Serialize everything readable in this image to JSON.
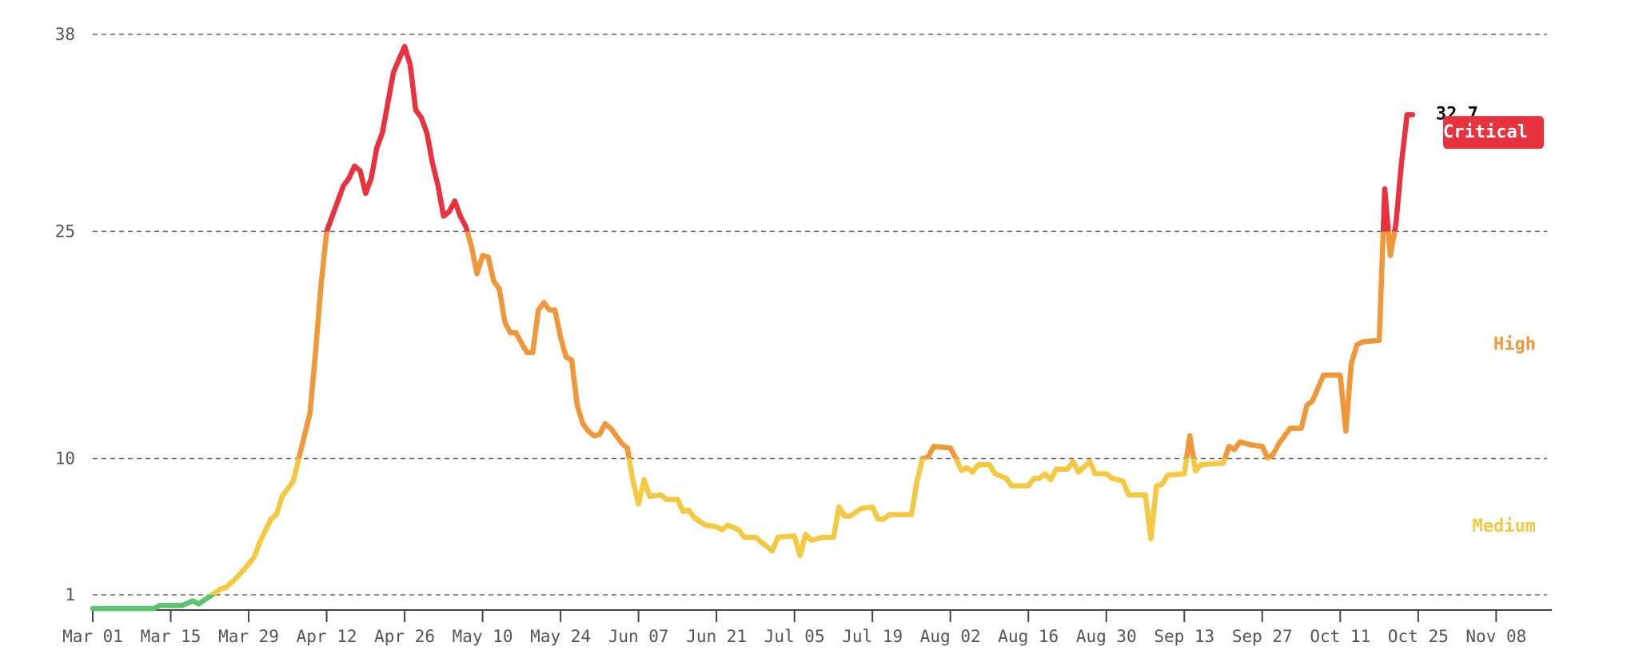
{
  "chart_data": {
    "type": "line",
    "x": [
      "Mar 01",
      "Mar 12",
      "Mar 13",
      "Mar 17",
      "Mar 19",
      "Mar 20",
      "Mar 22",
      "Mar 24",
      "Mar 25",
      "Mar 27",
      "Mar 28",
      "Mar 30",
      "Mar 31",
      "Apr 02",
      "Apr 03",
      "Apr 04",
      "Apr 06",
      "Apr 07",
      "Apr 09",
      "Apr 10",
      "Apr 11",
      "Apr 12",
      "Apr 14",
      "Apr 15",
      "Apr 16",
      "Apr 17",
      "Apr 18",
      "Apr 19",
      "Apr 20",
      "Apr 21",
      "Apr 22",
      "Apr 23",
      "Apr 24",
      "Apr 26",
      "Apr 27",
      "Apr 28",
      "Apr 29",
      "Apr 30",
      "May 01",
      "May 02",
      "May 03",
      "May 04",
      "May 05",
      "May 06",
      "May 07",
      "May 08",
      "May 09",
      "May 10",
      "May 11",
      "May 12",
      "May 13",
      "May 14",
      "May 15",
      "May 16",
      "May 17",
      "May 18",
      "May 19",
      "May 20",
      "May 21",
      "May 22",
      "May 23",
      "May 24",
      "May 25",
      "May 26",
      "May 27",
      "May 28",
      "May 29",
      "May 30",
      "May 31",
      "Jun 01",
      "Jun 02",
      "Jun 03",
      "Jun 04",
      "Jun 05",
      "Jun 06",
      "Jun 07",
      "Jun 08",
      "Jun 09",
      "Jun 11",
      "Jun 12",
      "Jun 14",
      "Jun 15",
      "Jun 16",
      "Jun 17",
      "Jun 19",
      "Jun 21",
      "Jun 22",
      "Jun 23",
      "Jun 25",
      "Jun 26",
      "Jun 28",
      "Jun 29",
      "Jul 01",
      "Jul 02",
      "Jul 05",
      "Jul 06",
      "Jul 07",
      "Jul 08",
      "Jul 10",
      "Jul 12",
      "Jul 13",
      "Jul 14",
      "Jul 15",
      "Jul 17",
      "Jul 19",
      "Jul 20",
      "Jul 21",
      "Jul 22",
      "Jul 26",
      "Jul 27",
      "Jul 28",
      "Jul 29",
      "Jul 30",
      "Aug 02",
      "Aug 03",
      "Aug 04",
      "Aug 05",
      "Aug 06",
      "Aug 07",
      "Aug 09",
      "Aug 10",
      "Aug 12",
      "Aug 13",
      "Aug 16",
      "Aug 17",
      "Aug 18",
      "Aug 19",
      "Aug 20",
      "Aug 21",
      "Aug 23",
      "Aug 24",
      "Aug 25",
      "Aug 27",
      "Aug 28",
      "Aug 30",
      "Aug 31",
      "Sep 02",
      "Sep 03",
      "Sep 06",
      "Sep 07",
      "Sep 08",
      "Sep 09",
      "Sep 10",
      "Sep 13",
      "Sep 14",
      "Sep 15",
      "Sep 16",
      "Sep 20",
      "Sep 21",
      "Sep 22",
      "Sep 23",
      "Sep 25",
      "Sep 27",
      "Sep 28",
      "Sep 29",
      "Sep 30",
      "Oct 01",
      "Oct 02",
      "Oct 04",
      "Oct 05",
      "Oct 06",
      "Oct 08",
      "Oct 11",
      "Oct 12",
      "Oct 13",
      "Oct 14",
      "Oct 15",
      "Oct 18",
      "Oct 19",
      "Oct 20",
      "Oct 21",
      "Oct 22",
      "Oct 23",
      "Oct 24"
    ],
    "values": [
      0.1,
      0.1,
      0.3,
      0.3,
      0.6,
      0.4,
      0.9,
      1.4,
      1.5,
      2.2,
      2.6,
      3.5,
      4.5,
      6,
      6.3,
      7.5,
      8.5,
      10,
      13,
      17,
      21.5,
      25,
      27,
      28,
      28.5,
      29.3,
      29,
      27.5,
      28.5,
      30.5,
      31.5,
      33.5,
      35.5,
      37.2,
      36,
      33,
      32.5,
      31.5,
      29.5,
      28,
      26,
      26.3,
      27,
      26,
      25.3,
      24,
      22.2,
      23.4,
      23.3,
      21.7,
      21.2,
      19,
      18.3,
      18.3,
      17.6,
      17,
      17,
      19.8,
      20.3,
      19.8,
      19.8,
      18,
      16.7,
      16.5,
      13.5,
      12.3,
      11.8,
      11.5,
      11.6,
      12.3,
      12,
      11.5,
      11,
      10.7,
      8.5,
      7,
      8.6,
      7.5,
      7.6,
      7.3,
      7.3,
      6.5,
      6.6,
      6.1,
      5.6,
      5.5,
      5.3,
      5.6,
      5.3,
      4.8,
      4.8,
      4.5,
      3.9,
      4.8,
      4.9,
      3.6,
      5,
      4.6,
      4.8,
      4.8,
      6.8,
      6.2,
      6.2,
      6.7,
      6.8,
      6,
      6,
      6.3,
      6.3,
      8.5,
      10,
      10.1,
      10.8,
      10.7,
      10,
      9.2,
      9.4,
      9.1,
      9.6,
      9.6,
      9,
      8.7,
      8.2,
      8.2,
      8.7,
      8.7,
      9,
      8.6,
      9.3,
      9.3,
      9.8,
      9.1,
      9.8,
      9,
      9,
      8.7,
      8.5,
      7.6,
      7.6,
      4.7,
      8.2,
      8.3,
      8.9,
      9,
      11.5,
      9.2,
      9.6,
      9.7,
      10.8,
      10.6,
      11.1,
      10.9,
      10.8,
      10,
      10.3,
      11,
      11.5,
      12,
      12,
      13.5,
      13.8,
      15.5,
      15.5,
      11.8,
      16.3,
      17.5,
      17.7,
      17.8,
      27.8,
      23.4,
      25.5,
      29.5,
      32.7,
      32.7
    ],
    "base_color": "#5cc36e",
    "levels": [
      {
        "label": "Medium",
        "color": "#f5c842",
        "min": 1
      },
      {
        "label": "High",
        "color": "#f0973a",
        "min": 10
      },
      {
        "label": "Critical",
        "color": "#e8323e",
        "min": 25,
        "badge": true
      }
    ],
    "xlim": [
      "Mar 01",
      "Nov 18"
    ],
    "xticks": [
      "Mar 01",
      "Mar 15",
      "Mar 29",
      "Apr 12",
      "Apr 26",
      "May 10",
      "May 24",
      "Jun 07",
      "Jun 21",
      "Jul 05",
      "Jul 19",
      "Aug 02",
      "Aug 16",
      "Aug 30",
      "Sep 13",
      "Sep 27",
      "Oct 11",
      "Oct 25",
      "Nov 08"
    ],
    "ylim": [
      0,
      38
    ],
    "yticks": [
      1,
      10,
      25,
      38
    ],
    "grid": true
  }
}
